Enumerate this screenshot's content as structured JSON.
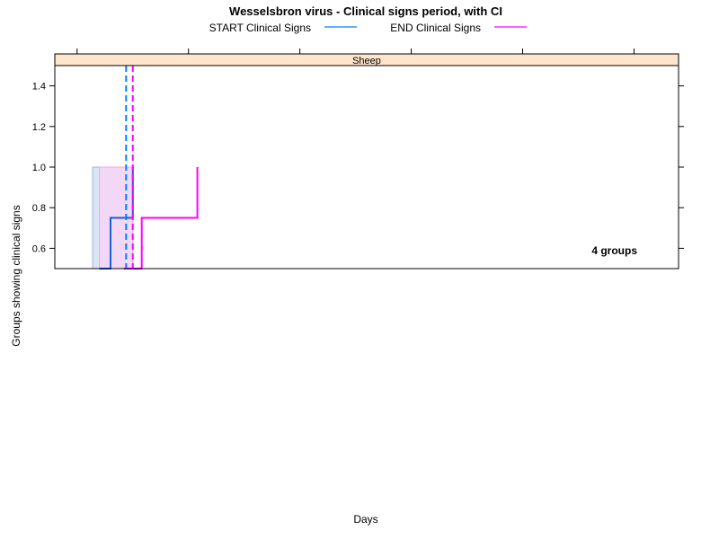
{
  "chart_data": {
    "type": "line",
    "title": "Wesselsbron virus - Clinical signs period, with CI",
    "xlabel": "Days",
    "ylabel": "Groups showing clinical signs",
    "panel_label": "Sheep",
    "annotation": "4 groups",
    "ylim": [
      0.5,
      1.5
    ],
    "yticks": [
      0.6,
      0.8,
      1.0,
      1.2,
      1.4
    ],
    "ytick_labels": [
      "0.6",
      "0.8",
      "1.0",
      "1.2",
      "1.4"
    ],
    "xlim": [
      -1,
      27
    ],
    "xticks": [
      0,
      5,
      10,
      15,
      20,
      25
    ],
    "legend": {
      "position": "top",
      "entries": [
        {
          "label": "START Clinical Signs",
          "color": "#0080ff"
        },
        {
          "label": "END Clinical Signs",
          "color": "#ff00ff"
        }
      ]
    },
    "series": [
      {
        "name": "START Clinical Signs",
        "color": "#1a5fd6",
        "step_x": [
          1.0,
          1.0,
          1.5,
          1.5,
          2.5,
          2.5
        ],
        "step_y": [
          0.5,
          0.5,
          0.5,
          0.75,
          0.75,
          1.0
        ],
        "median": 2.2,
        "ci": [
          0.7,
          2.5
        ]
      },
      {
        "name": "END Clinical Signs",
        "color": "#ff00ff",
        "step_x": [
          2.1,
          2.9,
          2.9,
          5.4,
          5.4
        ],
        "step_y": [
          0.5,
          0.5,
          0.75,
          0.75,
          1.0
        ],
        "median": 2.5,
        "ci": [
          1.0,
          2.5
        ]
      }
    ]
  }
}
